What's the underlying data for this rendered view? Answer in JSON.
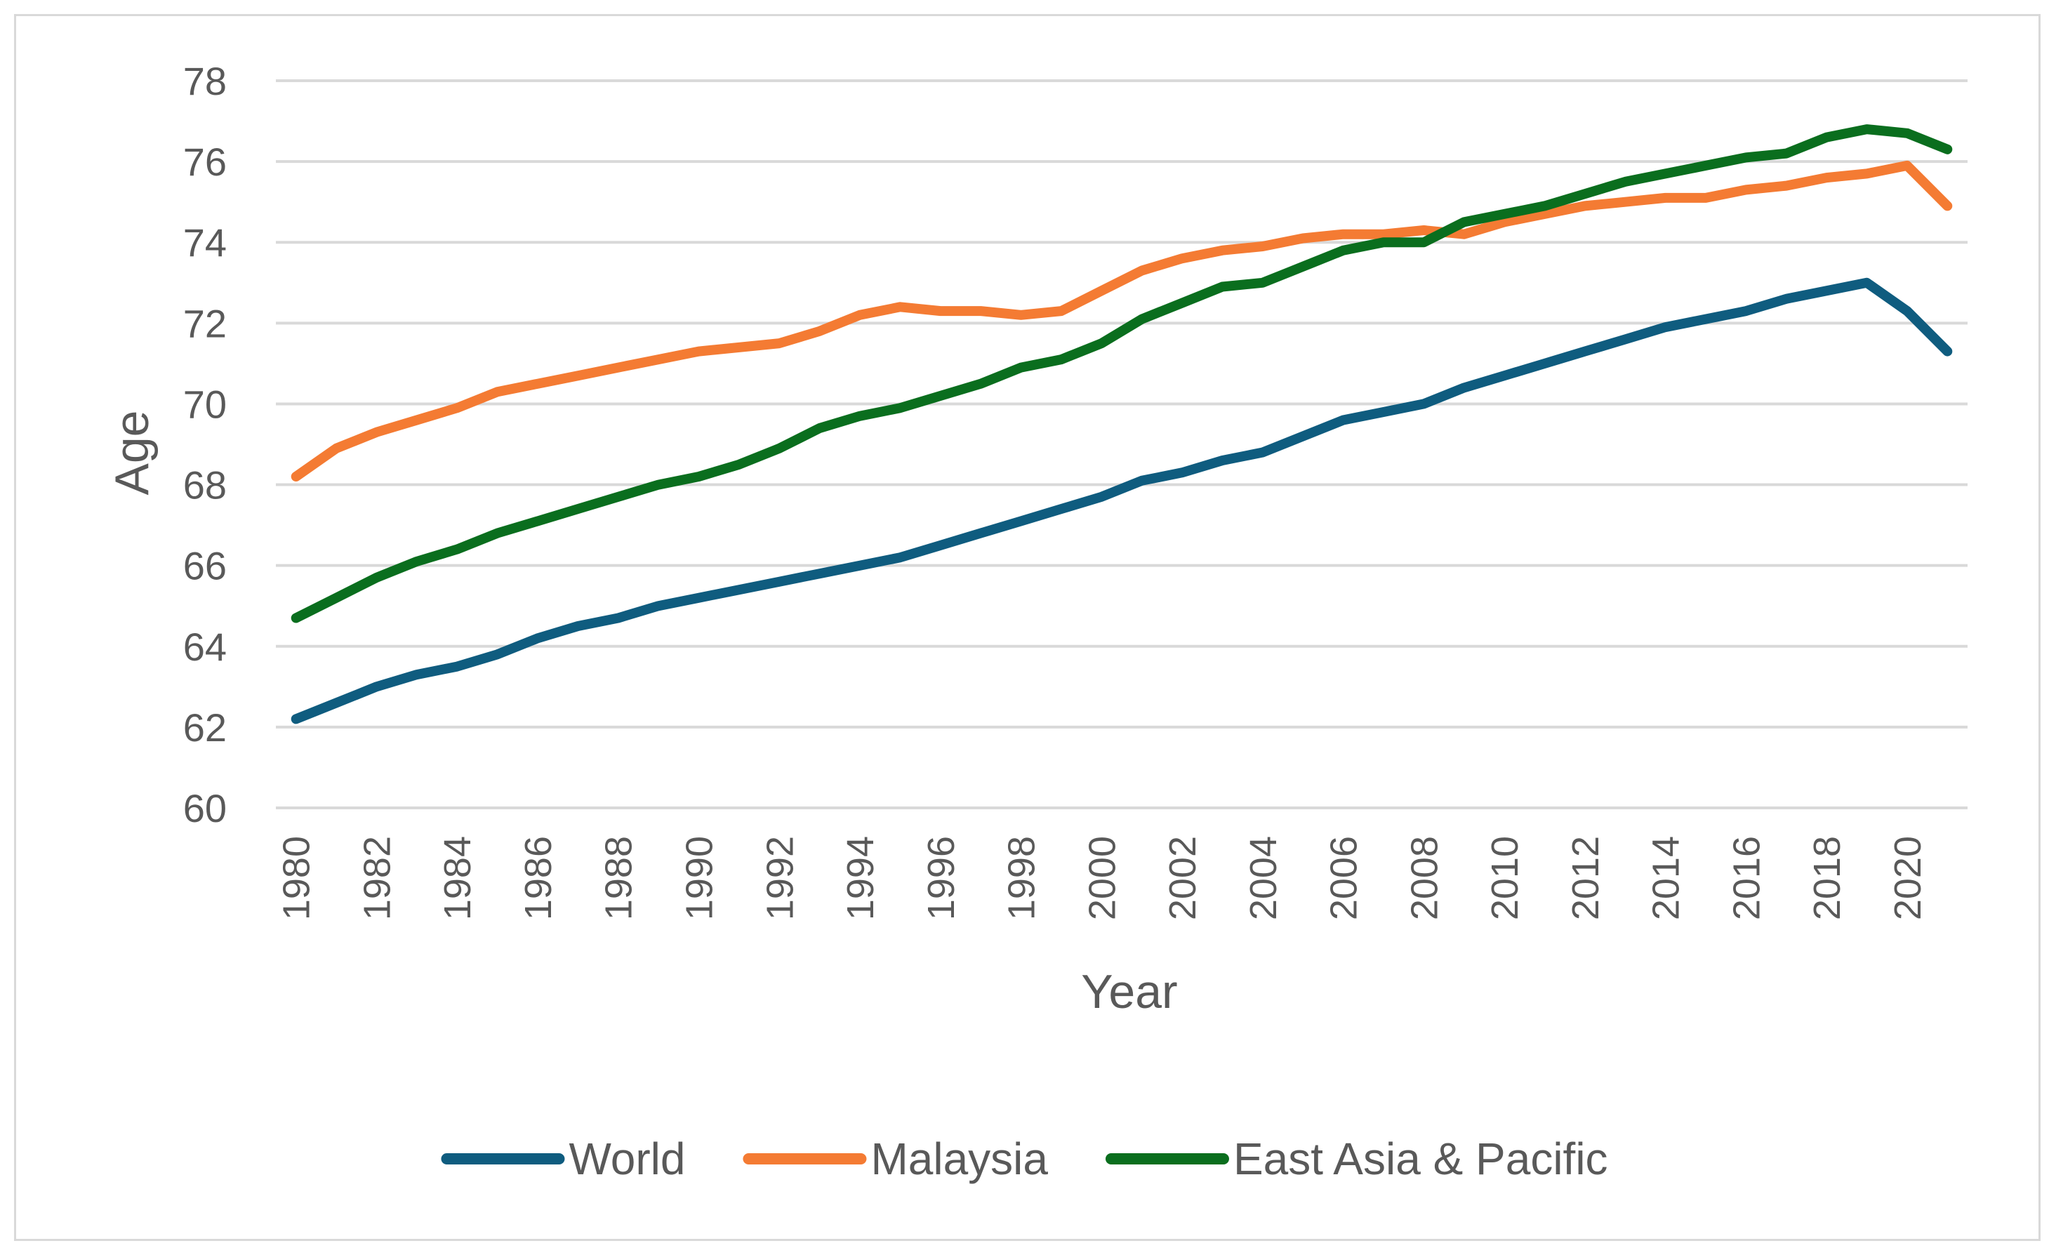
{
  "chart_data": {
    "type": "line",
    "title": "",
    "xlabel": "Year",
    "ylabel": "Age",
    "ylim": [
      60,
      78
    ],
    "yticks": [
      "60",
      "62",
      "64",
      "66",
      "68",
      "70",
      "72",
      "74",
      "76",
      "78"
    ],
    "xticks": [
      "1980",
      "1982",
      "1984",
      "1986",
      "1988",
      "1990",
      "1992",
      "1994",
      "1996",
      "1998",
      "2000",
      "2002",
      "2004",
      "2006",
      "2008",
      "2010",
      "2012",
      "2014",
      "2016",
      "2018",
      "2020"
    ],
    "grid": true,
    "legend_position": "bottom",
    "x": [
      1980,
      1981,
      1982,
      1983,
      1984,
      1985,
      1986,
      1987,
      1988,
      1989,
      1990,
      1991,
      1992,
      1993,
      1994,
      1995,
      1996,
      1997,
      1998,
      1999,
      2000,
      2001,
      2002,
      2003,
      2004,
      2005,
      2006,
      2007,
      2008,
      2009,
      2010,
      2011,
      2012,
      2013,
      2014,
      2015,
      2016,
      2017,
      2018,
      2019,
      2020,
      2021
    ],
    "series": [
      {
        "name": "World",
        "color": "#0f5c7f",
        "values": [
          62.2,
          62.6,
          63.0,
          63.3,
          63.5,
          63.8,
          64.2,
          64.5,
          64.7,
          65.0,
          65.2,
          65.4,
          65.6,
          65.8,
          66.0,
          66.2,
          66.5,
          66.8,
          67.1,
          67.4,
          67.7,
          68.1,
          68.3,
          68.6,
          68.8,
          69.2,
          69.6,
          69.8,
          70.0,
          70.4,
          70.7,
          71.0,
          71.3,
          71.6,
          71.9,
          72.1,
          72.3,
          72.6,
          72.8,
          73.0,
          72.3,
          71.3
        ]
      },
      {
        "name": "Malaysia",
        "color": "#f47b33",
        "values": [
          68.2,
          68.9,
          69.3,
          69.6,
          69.9,
          70.3,
          70.5,
          70.7,
          70.9,
          71.1,
          71.3,
          71.4,
          71.5,
          71.8,
          72.2,
          72.4,
          72.3,
          72.3,
          72.2,
          72.3,
          72.8,
          73.3,
          73.6,
          73.8,
          73.9,
          74.1,
          74.2,
          74.2,
          74.3,
          74.2,
          74.5,
          74.7,
          74.9,
          75.0,
          75.1,
          75.1,
          75.3,
          75.4,
          75.6,
          75.7,
          75.9,
          74.9
        ]
      },
      {
        "name": "East Asia & Pacific",
        "color": "#0a6e1e",
        "values": [
          64.7,
          65.2,
          65.7,
          66.1,
          66.4,
          66.8,
          67.1,
          67.4,
          67.7,
          68.0,
          68.2,
          68.5,
          68.9,
          69.4,
          69.7,
          69.9,
          70.2,
          70.5,
          70.9,
          71.1,
          71.5,
          72.1,
          72.5,
          72.9,
          73.0,
          73.4,
          73.8,
          74.0,
          74.0,
          74.5,
          74.7,
          74.9,
          75.2,
          75.5,
          75.7,
          75.9,
          76.1,
          76.2,
          76.6,
          76.8,
          76.7,
          76.3
        ]
      }
    ]
  }
}
